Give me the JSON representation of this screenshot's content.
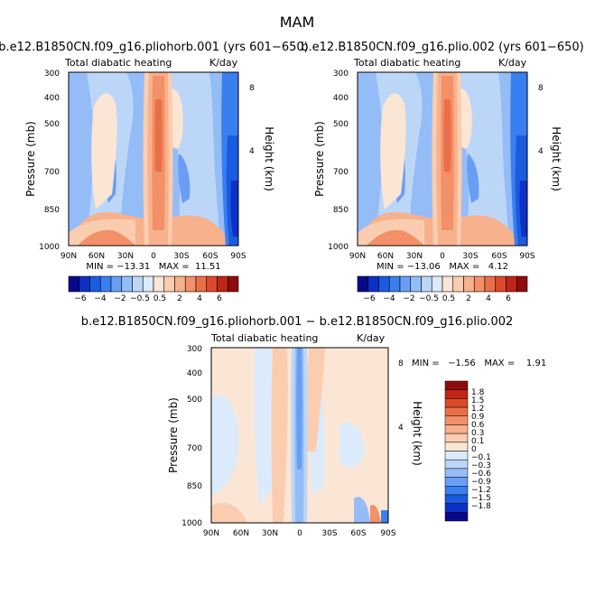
{
  "figure": {
    "title": "MAM"
  },
  "colors": {
    "main_scale": [
      "#08088c",
      "#0d30c8",
      "#1a5be0",
      "#3a7ff0",
      "#6a9ef5",
      "#94bdf7",
      "#bcd6f8",
      "#dcebfb",
      "#fbe5d4",
      "#fbcdb0",
      "#f8b18d",
      "#f39068",
      "#ea6f47",
      "#dc4a2b",
      "#c12519",
      "#8e0c0c"
    ],
    "diff_scale": [
      "#08088c",
      "#0d30c8",
      "#1a5be0",
      "#3a7ff0",
      "#6a9ef5",
      "#94bdf7",
      "#bcd6f8",
      "#dcebfb",
      "#fbe5d4",
      "#fbcdb0",
      "#f8b18d",
      "#f39068",
      "#ea6f47",
      "#dc4a2b",
      "#c12519",
      "#8e0c0c"
    ]
  },
  "chart_data": [
    {
      "type": "heatmap",
      "title": "b.e12.B1850CN.f09_g16.pliohorb.001 (yrs 601−650)",
      "subtitle_left": "Total diabatic heating",
      "subtitle_right": "K/day",
      "ylabel": "Pressure (mb)",
      "ylabel_right": "Height (km)",
      "x_ticks": [
        "90N",
        "60N",
        "30N",
        "0",
        "30S",
        "60S",
        "90S"
      ],
      "y_ticks": [
        "300",
        "400",
        "500",
        "700",
        "850",
        "1000"
      ],
      "y_right_ticks": [
        "8",
        "4"
      ],
      "ylim": [
        1000,
        300
      ],
      "stats": "MIN = −13.31   MAX =  11.51",
      "colorbar_labels": [
        "−6",
        "−4",
        "−2",
        "−0.5",
        "0.5",
        "2",
        "4",
        "6"
      ]
    },
    {
      "type": "heatmap",
      "title": "b.e12.B1850CN.f09_g16.plio.002 (yrs 601−650)",
      "subtitle_left": "Total diabatic heating",
      "subtitle_right": "K/day",
      "ylabel": "Pressure (mb)",
      "ylabel_right": "Height (km)",
      "x_ticks": [
        "90N",
        "60N",
        "30N",
        "0",
        "30S",
        "60S",
        "90S"
      ],
      "y_ticks": [
        "300",
        "400",
        "500",
        "700",
        "850",
        "1000"
      ],
      "y_right_ticks": [
        "8",
        "4"
      ],
      "ylim": [
        1000,
        300
      ],
      "stats": "MIN = −13.06   MAX =   4.12",
      "colorbar_labels": [
        "−6",
        "−4",
        "−2",
        "−0.5",
        "0.5",
        "2",
        "4",
        "6"
      ]
    },
    {
      "type": "heatmap",
      "title": "b.e12.B1850CN.f09_g16.pliohorb.001 − b.e12.B1850CN.f09_g16.plio.002",
      "subtitle_left": "Total diabatic heating",
      "subtitle_right": "K/day",
      "ylabel": "Pressure (mb)",
      "ylabel_right": "Height (km)",
      "x_ticks": [
        "90N",
        "60N",
        "30N",
        "0",
        "30S",
        "60S",
        "90S"
      ],
      "y_ticks": [
        "300",
        "400",
        "500",
        "700",
        "850",
        "1000"
      ],
      "y_right_ticks": [
        "8",
        "4"
      ],
      "ylim": [
        1000,
        300
      ],
      "stats": "MIN =   −1.56   MAX =    1.91",
      "colorbar_labels": [
        "1.8",
        "1.5",
        "1.2",
        "0.9",
        "0.6",
        "0.3",
        "0.1",
        "0",
        "−0.1",
        "−0.3",
        "−0.6",
        "−0.9",
        "−1.2",
        "−1.5",
        "−1.8"
      ]
    }
  ]
}
